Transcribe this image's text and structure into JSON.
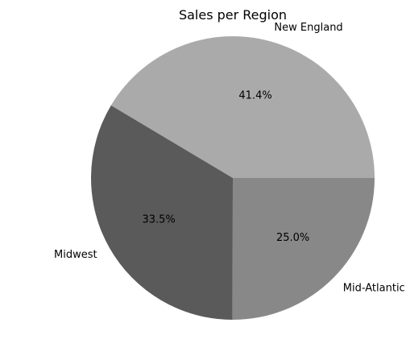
{
  "chart_data": {
    "type": "pie",
    "title": "Sales per Region",
    "slices": [
      {
        "label": "New England",
        "value": 41.4,
        "pct_label": "41.4%",
        "color": "#aaaaaa"
      },
      {
        "label": "Midwest",
        "value": 33.5,
        "pct_label": "33.5%",
        "color": "#5a5a5a"
      },
      {
        "label": "Mid-Atlantic",
        "value": 25.0,
        "pct_label": "25.0%",
        "color": "#888888"
      }
    ],
    "start_angle_deg": 0,
    "direction": "counterclockwise",
    "legend": "none"
  }
}
